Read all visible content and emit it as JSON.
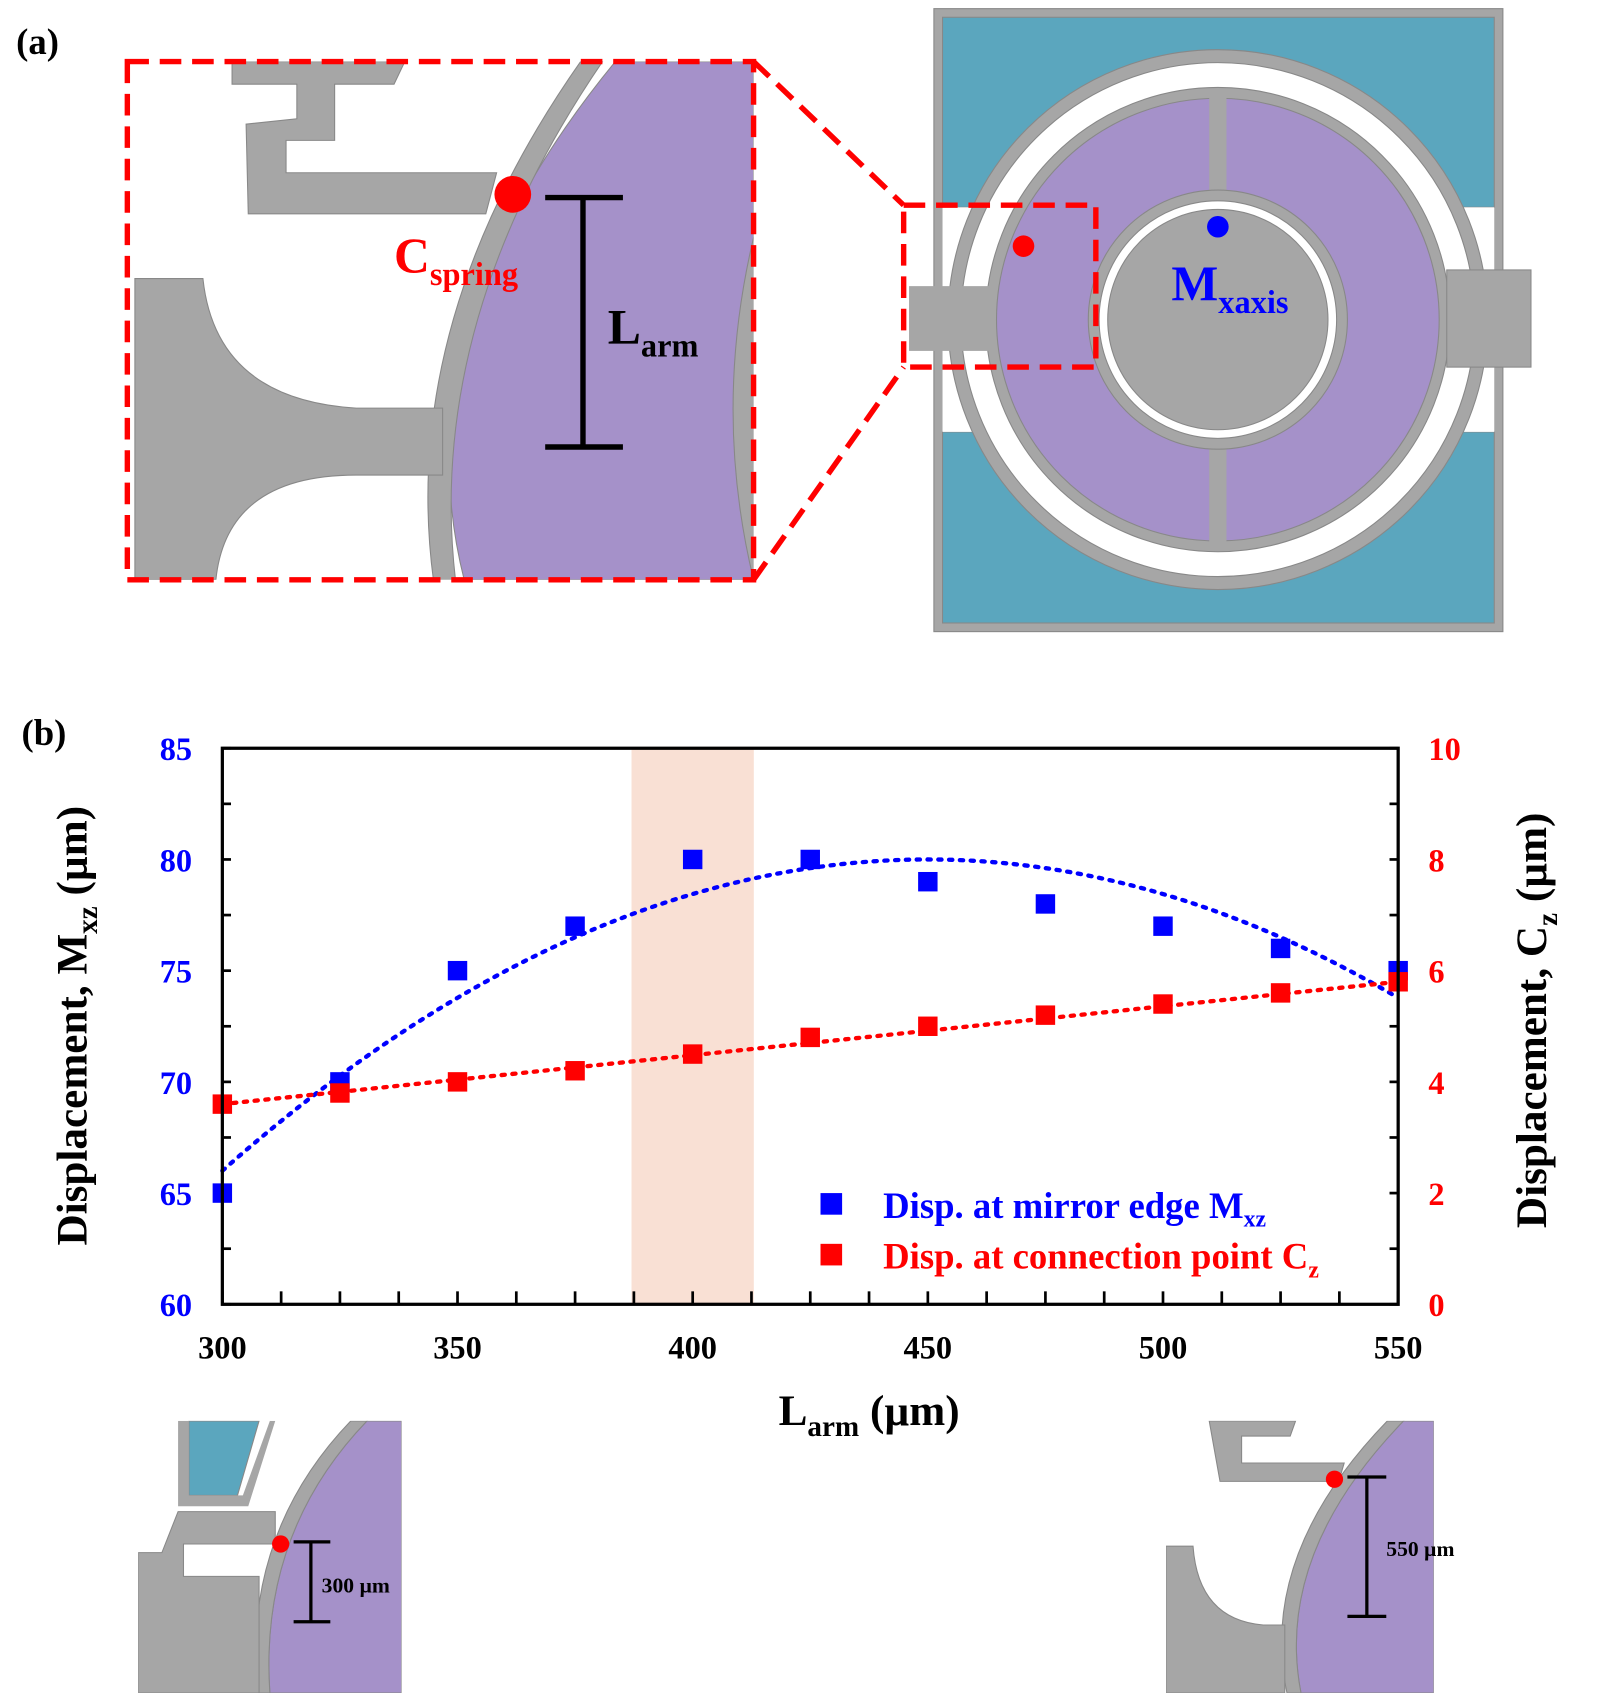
{
  "panel_a": {
    "label": "(a)",
    "c_spring_main": "C",
    "c_spring_sub": "spring",
    "l_arm_main": "L",
    "l_arm_sub": "arm",
    "m_xaxis_main": "M",
    "m_xaxis_sub": "xaxis"
  },
  "panel_b": {
    "label": "(b)"
  },
  "insets": {
    "left_label": "300 µm",
    "right_label": "550 µm"
  },
  "colors": {
    "blue": "#0000ff",
    "red": "#ff0000",
    "purple": "#a591c9",
    "teal": "#5ba6be",
    "gray": "#a6a6a6",
    "highlight": "#f9e0d4"
  },
  "chart_data": {
    "type": "scatter",
    "x": [
      300,
      325,
      350,
      375,
      400,
      425,
      450,
      475,
      500,
      525,
      550
    ],
    "series": [
      {
        "name": "Disp. at mirror edge M_xz",
        "legend_main": "Disp. at mirror edge M",
        "legend_sub": "xz",
        "axis": "left",
        "color": "#0000ff",
        "values": [
          65,
          70,
          75,
          77,
          80,
          80,
          79,
          78,
          77,
          76,
          75
        ],
        "trend": "polynomial (dotted)"
      },
      {
        "name": "Disp. at connection point C_z",
        "legend_main": "Disp. at connection point C",
        "legend_sub": "z",
        "axis": "right",
        "color": "#ff0000",
        "values": [
          3.6,
          3.8,
          4.0,
          4.2,
          4.5,
          4.8,
          5.0,
          5.2,
          5.4,
          5.6,
          5.8
        ],
        "trend": "linear (dotted)"
      }
    ],
    "highlight_range_x": [
      387,
      413
    ],
    "xlabel_main": "L",
    "xlabel_sub": "arm",
    "xlabel_unit": " (µm)",
    "ylabel_left_main": "Displacement, M",
    "ylabel_left_sub": "xz",
    "ylabel_left_unit": " (µm)",
    "ylabel_right_main": "Displacement, C",
    "ylabel_right_sub": "z",
    "ylabel_right_unit": " (µm)",
    "xlim": [
      300,
      550
    ],
    "ylim_left": [
      60,
      85
    ],
    "ylim_right": [
      0,
      10
    ],
    "xticks": [
      "300",
      "350",
      "400",
      "450",
      "500",
      "550"
    ],
    "yticks_left": [
      "60",
      "65",
      "70",
      "75",
      "80",
      "85"
    ],
    "yticks_right": [
      "0",
      "2",
      "4",
      "6",
      "8",
      "10"
    ],
    "legend_position": "bottom-right"
  }
}
